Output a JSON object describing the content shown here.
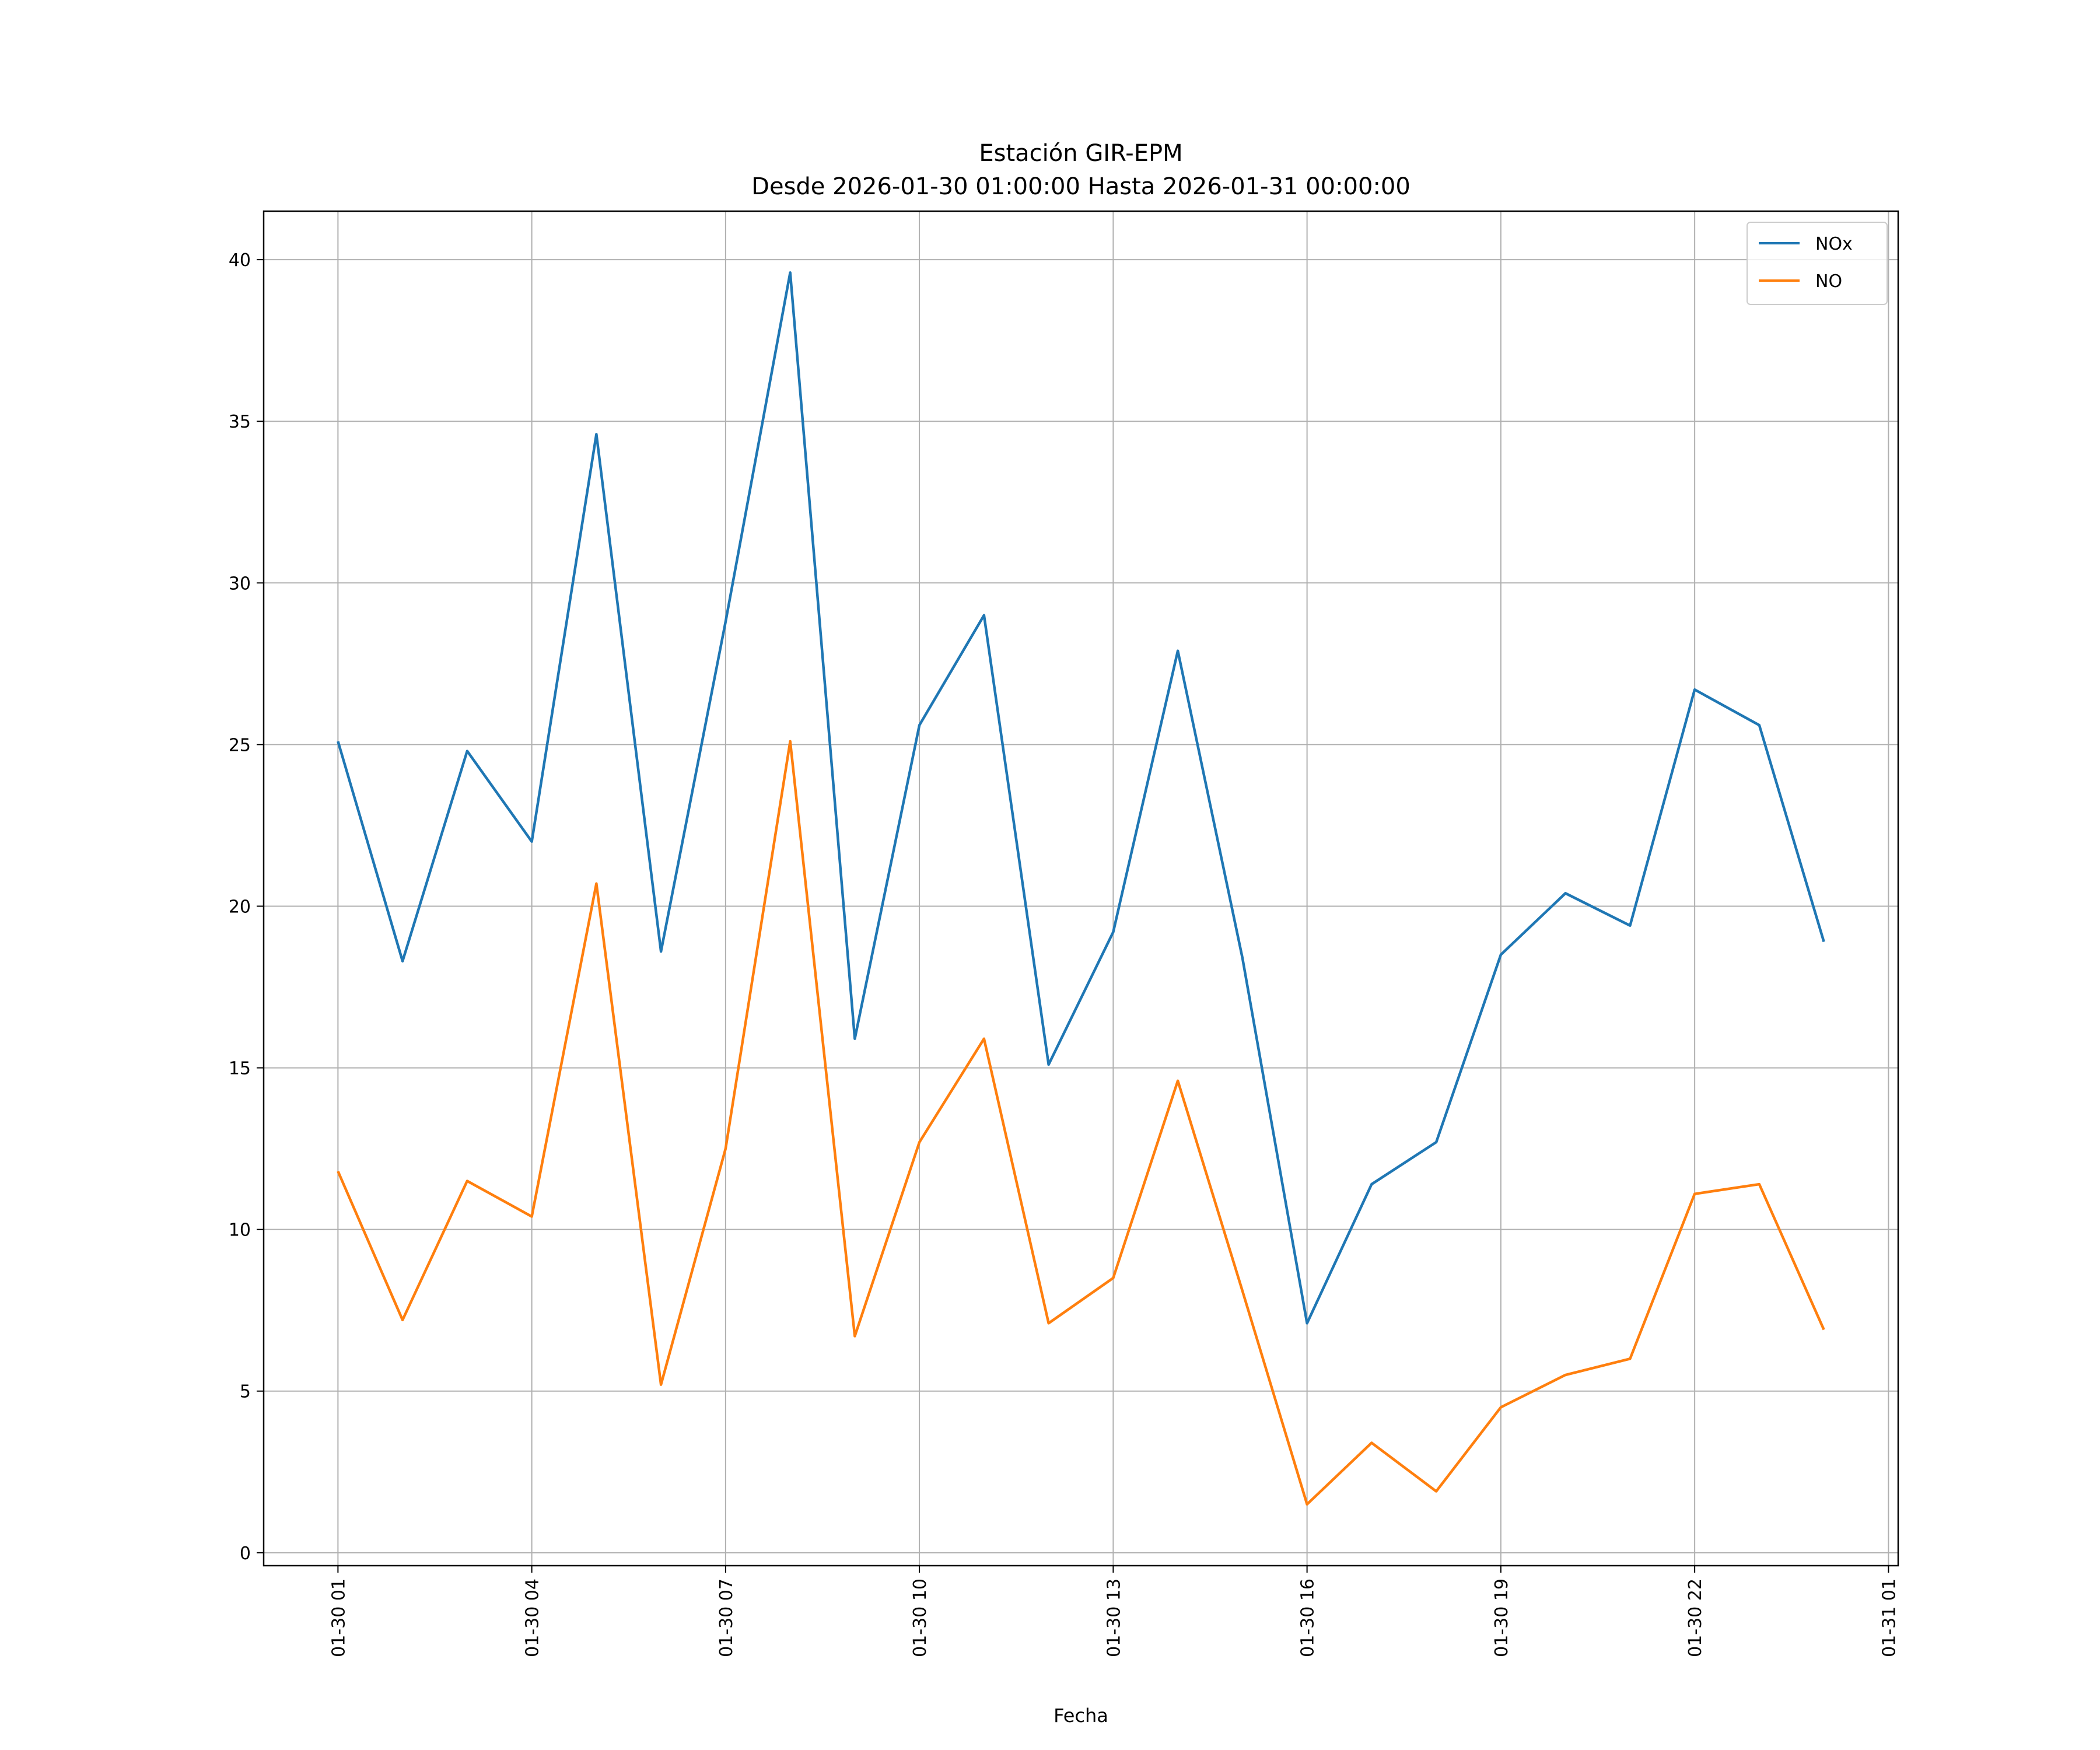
{
  "chart_data": {
    "type": "line",
    "title": "Estación GIR-EPM",
    "subtitle": "Desde 2026-01-30 01:00:00 Hasta 2026-01-31 00:00:00",
    "xlabel": "Fecha",
    "ylabel": "",
    "x_unit": "hours since 2026-01-30 00:00",
    "x": [
      1,
      2,
      3,
      4,
      5,
      6,
      7,
      8,
      9,
      10,
      11,
      12,
      13,
      14,
      15,
      16,
      17,
      18,
      19,
      20,
      21,
      22,
      23,
      24
    ],
    "xlim": [
      -0.15,
      25.15
    ],
    "ylim": [
      -0.4,
      41.5
    ],
    "xticks": [
      1,
      4,
      7,
      10,
      13,
      16,
      19,
      22,
      25
    ],
    "xtick_labels": [
      "01-30 01",
      "01-30 04",
      "01-30 07",
      "01-30 10",
      "01-30 13",
      "01-30 16",
      "01-30 19",
      "01-30 22",
      "01-31 01"
    ],
    "yticks": [
      0,
      5,
      10,
      15,
      20,
      25,
      30,
      35,
      40
    ],
    "ytick_labels": [
      "0",
      "5",
      "10",
      "15",
      "20",
      "25",
      "30",
      "35",
      "40"
    ],
    "grid": true,
    "legend_position": "top-right",
    "series": [
      {
        "name": "NOx",
        "color": "#1f77b4",
        "values": [
          25.1,
          18.3,
          24.8,
          22.0,
          34.6,
          18.6,
          28.8,
          39.6,
          15.9,
          25.6,
          29.0,
          15.1,
          19.2,
          27.9,
          18.4,
          7.1,
          11.4,
          12.7,
          18.5,
          20.4,
          19.4,
          26.7,
          25.6,
          18.9
        ]
      },
      {
        "name": "NO",
        "color": "#ff7f0e",
        "values": [
          11.8,
          7.2,
          11.5,
          10.4,
          20.7,
          5.2,
          12.5,
          25.1,
          6.7,
          12.7,
          15.9,
          7.1,
          8.5,
          14.6,
          8.1,
          1.5,
          3.4,
          1.9,
          4.5,
          5.5,
          6.0,
          11.1,
          11.4,
          6.9
        ]
      }
    ]
  }
}
